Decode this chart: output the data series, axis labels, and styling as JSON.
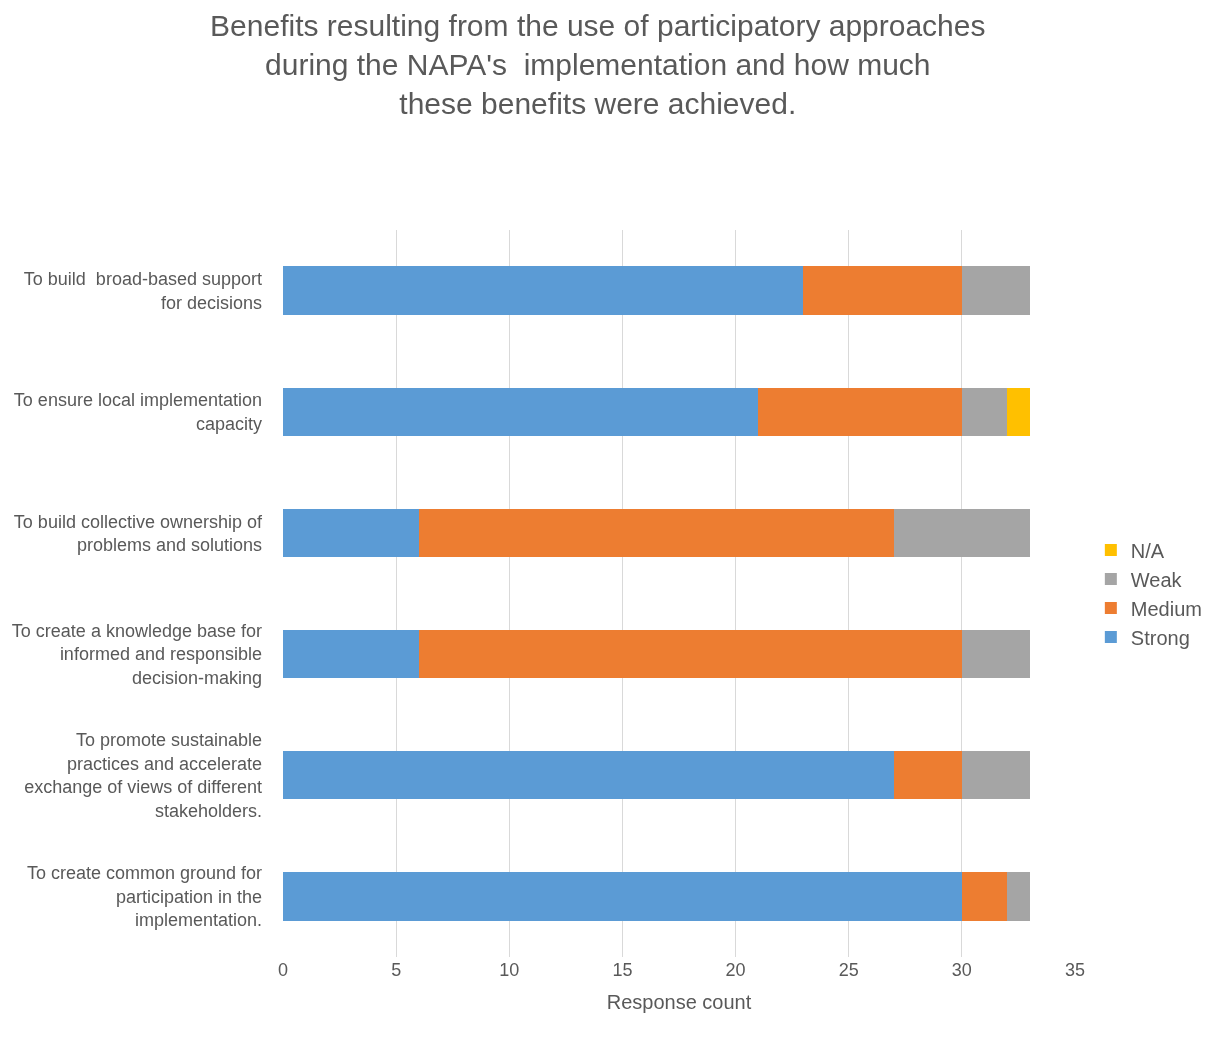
{
  "chart_data": {
    "type": "bar",
    "orientation": "horizontal",
    "stacked": true,
    "title": "Benefits resulting from the use of participatory approaches\nduring the NAPA's  implementation and how much\nthese benefits were achieved.",
    "xlabel": "Response count",
    "categories": [
      "To build  broad-based support\nfor decisions",
      "To ensure local implementation\ncapacity",
      "To build collective ownership of\nproblems and solutions",
      "To create a knowledge base for\ninformed and responsible\ndecision-making",
      "To promote sustainable\npractices and accelerate\nexchange of views of different\nstakeholders.",
      "To create common ground for\nparticipation in the\nimplementation."
    ],
    "series": [
      {
        "name": "Strong",
        "color": "#5b9bd5",
        "values": [
          23,
          21,
          6,
          6,
          27,
          30
        ]
      },
      {
        "name": "Medium",
        "color": "#ed7d31",
        "values": [
          7,
          9,
          21,
          24,
          3,
          2
        ]
      },
      {
        "name": "Weak",
        "color": "#a5a5a5",
        "values": [
          3,
          2,
          6,
          3,
          3,
          1
        ]
      },
      {
        "name": "N/A",
        "color": "#ffc000",
        "values": [
          null,
          1,
          null,
          null,
          null,
          null
        ]
      }
    ],
    "xlim": [
      0,
      35
    ],
    "xticks": [
      0,
      5,
      10,
      15,
      20,
      25,
      30,
      35
    ],
    "grid": "x",
    "legend": "right"
  }
}
